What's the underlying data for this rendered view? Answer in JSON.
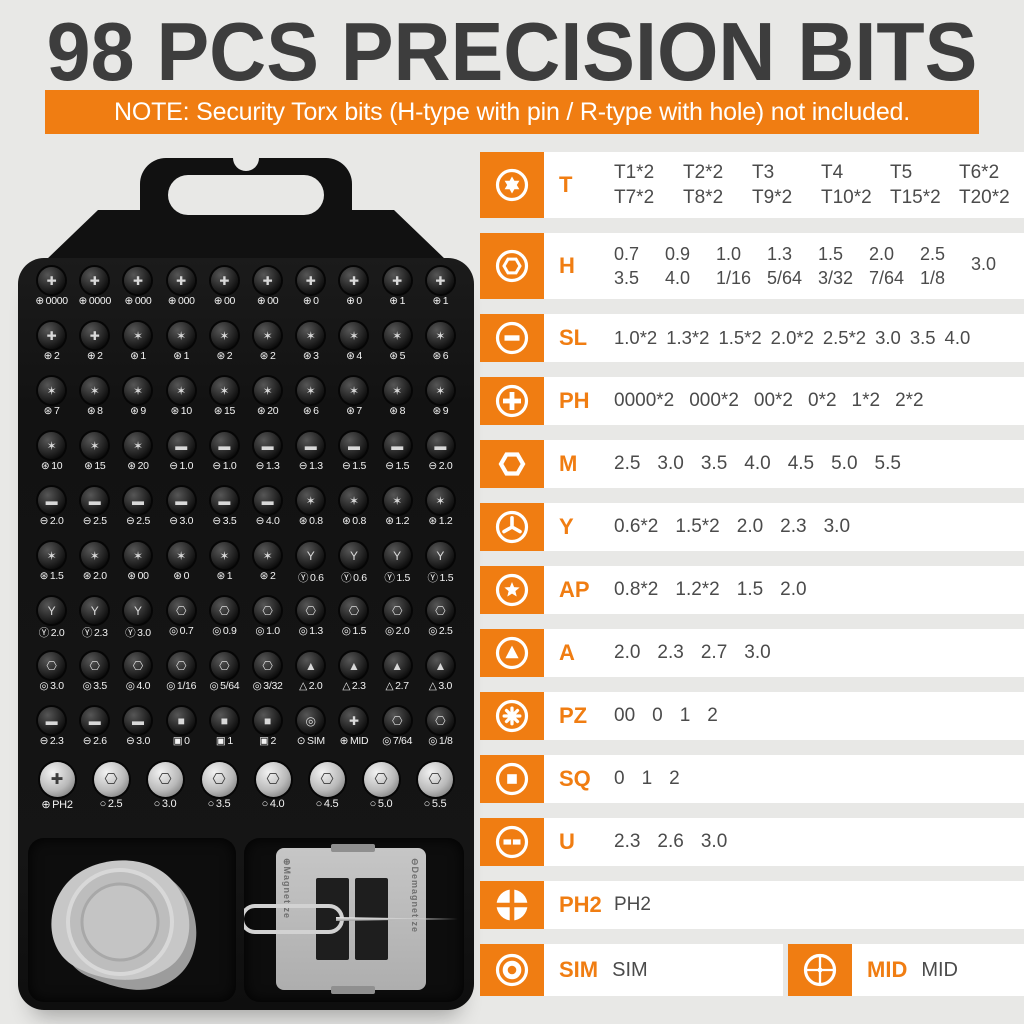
{
  "colors": {
    "accent": "#F07D12",
    "title_text": "#3d3d3d",
    "note_bg": "#F07D12",
    "value_text": "#4b4b4b"
  },
  "header": {
    "title": "98 PCS PRECISION BITS",
    "note": "NOTE: Security Torx bits (H-type with pin / R-type with hole) not included."
  },
  "table": {
    "rows": [
      {
        "id": "T",
        "label": "T",
        "icon": "torx-icon",
        "columns": [
          [
            "T1*2",
            "T7*2"
          ],
          [
            "T2*2",
            "T8*2"
          ],
          [
            "T3",
            "T9*2"
          ],
          [
            "T4",
            "T10*2"
          ],
          [
            "T5",
            "T15*2"
          ],
          [
            "T6*2",
            "T20*2"
          ]
        ]
      },
      {
        "id": "H",
        "label": "H",
        "icon": "hex-icon",
        "columns": [
          [
            "0.7",
            "3.5"
          ],
          [
            "0.9",
            "4.0"
          ],
          [
            "1.0",
            "1/16"
          ],
          [
            "1.3",
            "5/64"
          ],
          [
            "1.5",
            "3/32"
          ],
          [
            "2.0",
            "7/64"
          ],
          [
            "2.5",
            "1/8"
          ],
          [
            "3.0",
            ""
          ]
        ]
      },
      {
        "id": "SL",
        "label": "SL",
        "icon": "slotted-icon",
        "values": [
          "1.0*2",
          "1.3*2",
          "1.5*2",
          "2.0*2",
          "2.5*2",
          "3.0",
          "3.5",
          "4.0"
        ]
      },
      {
        "id": "PH",
        "label": "PH",
        "icon": "phillips-icon",
        "values": [
          "0000*2",
          "000*2",
          "00*2",
          "0*2",
          "1*2",
          "2*2"
        ]
      },
      {
        "id": "M",
        "label": "M",
        "icon": "socket-icon",
        "values": [
          "2.5",
          "3.0",
          "3.5",
          "4.0",
          "4.5",
          "5.0",
          "5.5"
        ]
      },
      {
        "id": "Y",
        "label": "Y",
        "icon": "triwing-icon",
        "values": [
          "0.6*2",
          "1.5*2",
          "2.0",
          "2.3",
          "3.0"
        ]
      },
      {
        "id": "AP",
        "label": "AP",
        "icon": "star-icon",
        "values": [
          "0.8*2",
          "1.2*2",
          "1.5",
          "2.0"
        ]
      },
      {
        "id": "A",
        "label": "A",
        "icon": "triangle-icon",
        "values": [
          "2.0",
          "2.3",
          "2.7",
          "3.0"
        ]
      },
      {
        "id": "PZ",
        "label": "PZ",
        "icon": "pozidriv-icon",
        "values": [
          "00",
          "0",
          "1",
          "2"
        ]
      },
      {
        "id": "SQ",
        "label": "SQ",
        "icon": "square-icon",
        "values": [
          "0",
          "1",
          "2"
        ]
      },
      {
        "id": "U",
        "label": "U",
        "icon": "u-notch-icon",
        "values": [
          "2.3",
          "2.6",
          "3.0"
        ]
      },
      {
        "id": "PH2",
        "label": "PH2",
        "icon": "phillips2-icon",
        "values": [
          "PH2"
        ]
      }
    ],
    "double_row": {
      "cells": [
        {
          "label": "SIM",
          "icon": "sim-icon",
          "values": [
            "SIM"
          ]
        },
        {
          "label": "MID",
          "icon": "mid-icon",
          "values": [
            "MID"
          ]
        }
      ]
    }
  },
  "case": {
    "bit_rows": [
      [
        [
          "⊕",
          "0000"
        ],
        [
          "⊕",
          "0000"
        ],
        [
          "⊕",
          "000"
        ],
        [
          "⊕",
          "000"
        ],
        [
          "⊕",
          "00"
        ],
        [
          "⊕",
          "00"
        ],
        [
          "⊕",
          "0"
        ],
        [
          "⊕",
          "0"
        ],
        [
          "⊕",
          "1"
        ],
        [
          "⊕",
          "1"
        ]
      ],
      [
        [
          "⊕",
          "2"
        ],
        [
          "⊕",
          "2"
        ],
        [
          "⊛",
          "1"
        ],
        [
          "⊛",
          "1"
        ],
        [
          "⊛",
          "2"
        ],
        [
          "⊛",
          "2"
        ],
        [
          "⊛",
          "3"
        ],
        [
          "⊛",
          "4"
        ],
        [
          "⊛",
          "5"
        ],
        [
          "⊛",
          "6"
        ]
      ],
      [
        [
          "⊛",
          "7"
        ],
        [
          "⊛",
          "8"
        ],
        [
          "⊛",
          "9"
        ],
        [
          "⊛",
          "10"
        ],
        [
          "⊛",
          "15"
        ],
        [
          "⊛",
          "20"
        ],
        [
          "⊛",
          "6"
        ],
        [
          "⊛",
          "7"
        ],
        [
          "⊛",
          "8"
        ],
        [
          "⊛",
          "9"
        ]
      ],
      [
        [
          "⊛",
          "10"
        ],
        [
          "⊛",
          "15"
        ],
        [
          "⊛",
          "20"
        ],
        [
          "⊖",
          "1.0"
        ],
        [
          "⊖",
          "1.0"
        ],
        [
          "⊖",
          "1.3"
        ],
        [
          "⊖",
          "1.3"
        ],
        [
          "⊖",
          "1.5"
        ],
        [
          "⊖",
          "1.5"
        ],
        [
          "⊖",
          "2.0"
        ]
      ],
      [
        [
          "⊖",
          "2.0"
        ],
        [
          "⊖",
          "2.5"
        ],
        [
          "⊖",
          "2.5"
        ],
        [
          "⊖",
          "3.0"
        ],
        [
          "⊖",
          "3.5"
        ],
        [
          "⊖",
          "4.0"
        ],
        [
          "⊛",
          "0.8"
        ],
        [
          "⊛",
          "0.8"
        ],
        [
          "⊛",
          "1.2"
        ],
        [
          "⊛",
          "1.2"
        ]
      ],
      [
        [
          "⊛",
          "1.5"
        ],
        [
          "⊛",
          "2.0"
        ],
        [
          "⊛",
          "00"
        ],
        [
          "⊛",
          "0"
        ],
        [
          "⊛",
          "1"
        ],
        [
          "⊛",
          "2"
        ],
        [
          "Ⓨ",
          "0.6"
        ],
        [
          "Ⓨ",
          "0.6"
        ],
        [
          "Ⓨ",
          "1.5"
        ],
        [
          "Ⓨ",
          "1.5"
        ]
      ],
      [
        [
          "Ⓨ",
          "2.0"
        ],
        [
          "Ⓨ",
          "2.3"
        ],
        [
          "Ⓨ",
          "3.0"
        ],
        [
          "◎",
          "0.7"
        ],
        [
          "◎",
          "0.9"
        ],
        [
          "◎",
          "1.0"
        ],
        [
          "◎",
          "1.3"
        ],
        [
          "◎",
          "1.5"
        ],
        [
          "◎",
          "2.0"
        ],
        [
          "◎",
          "2.5"
        ]
      ],
      [
        [
          "◎",
          "3.0"
        ],
        [
          "◎",
          "3.5"
        ],
        [
          "◎",
          "4.0"
        ],
        [
          "◎",
          "1/16"
        ],
        [
          "◎",
          "5/64"
        ],
        [
          "◎",
          "3/32"
        ],
        [
          "△",
          "2.0"
        ],
        [
          "△",
          "2.3"
        ],
        [
          "△",
          "2.7"
        ],
        [
          "△",
          "3.0"
        ]
      ],
      [
        [
          "⊖",
          "2.3"
        ],
        [
          "⊖",
          "2.6"
        ],
        [
          "⊖",
          "3.0"
        ],
        [
          "▣",
          "0"
        ],
        [
          "▣",
          "1"
        ],
        [
          "▣",
          "2"
        ],
        [
          "⊙",
          "SIM"
        ],
        [
          "⊕",
          "MID"
        ],
        [
          "◎",
          "7/64"
        ],
        [
          "◎",
          "1/8"
        ]
      ]
    ],
    "large_row": [
      [
        "⊕",
        "PH2"
      ],
      [
        "○",
        "2.5"
      ],
      [
        "○",
        "3.0"
      ],
      [
        "○",
        "3.5"
      ],
      [
        "○",
        "4.0"
      ],
      [
        "○",
        "4.5"
      ],
      [
        "○",
        "5.0"
      ],
      [
        "○",
        "5.5"
      ]
    ],
    "tools": {
      "magnetize_icon": "⊕",
      "magnetize": "Magnetize",
      "demagnetize_icon": "⊖",
      "demagnetize": "Demagnetize"
    }
  }
}
